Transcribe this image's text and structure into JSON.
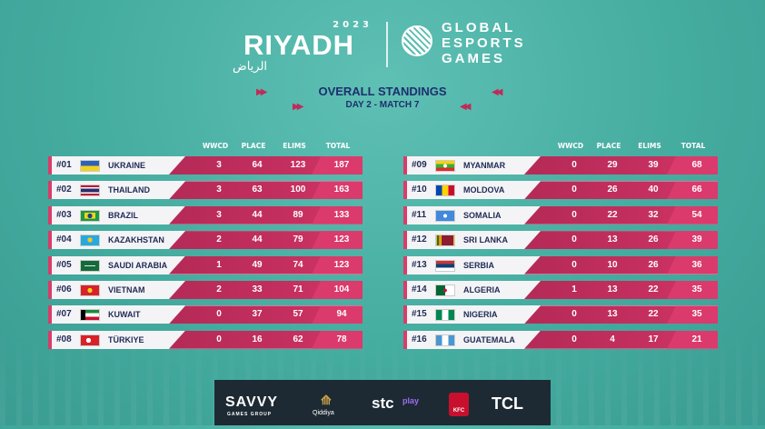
{
  "header": {
    "riyadh_year": "2023",
    "riyadh_word": "RIYADH",
    "riyadh_arabic": "الرياض",
    "ges_line1": "GLOBAL",
    "ges_line2": "ESPORTS",
    "ges_line3": "GAMES",
    "title": "OVERALL STANDINGS",
    "subtitle": "DAY 2 - MATCH 7"
  },
  "columns": {
    "wwcd": "WWCD",
    "place": "PLACE",
    "elims": "ELIMS",
    "total": "TOTAL"
  },
  "left": [
    {
      "rank": "#01",
      "country": "UKRAINE",
      "wwcd": "3",
      "place": "64",
      "elims": "123",
      "total": "187"
    },
    {
      "rank": "#02",
      "country": "THAILAND",
      "wwcd": "3",
      "place": "63",
      "elims": "100",
      "total": "163"
    },
    {
      "rank": "#03",
      "country": "BRAZIL",
      "wwcd": "3",
      "place": "44",
      "elims": "89",
      "total": "133"
    },
    {
      "rank": "#04",
      "country": "KAZAKHSTAN",
      "wwcd": "2",
      "place": "44",
      "elims": "79",
      "total": "123"
    },
    {
      "rank": "#05",
      "country": "SAUDI ARABIA",
      "wwcd": "1",
      "place": "49",
      "elims": "74",
      "total": "123"
    },
    {
      "rank": "#06",
      "country": "VIETNAM",
      "wwcd": "2",
      "place": "33",
      "elims": "71",
      "total": "104"
    },
    {
      "rank": "#07",
      "country": "KUWAIT",
      "wwcd": "0",
      "place": "37",
      "elims": "57",
      "total": "94"
    },
    {
      "rank": "#08",
      "country": "TÜRKIYE",
      "wwcd": "0",
      "place": "16",
      "elims": "62",
      "total": "78"
    }
  ],
  "right": [
    {
      "rank": "#09",
      "country": "MYANMAR",
      "wwcd": "0",
      "place": "29",
      "elims": "39",
      "total": "68"
    },
    {
      "rank": "#10",
      "country": "MOLDOVA",
      "wwcd": "0",
      "place": "26",
      "elims": "40",
      "total": "66"
    },
    {
      "rank": "#11",
      "country": "SOMALIA",
      "wwcd": "0",
      "place": "22",
      "elims": "32",
      "total": "54"
    },
    {
      "rank": "#12",
      "country": "SRI LANKA",
      "wwcd": "0",
      "place": "13",
      "elims": "26",
      "total": "39"
    },
    {
      "rank": "#13",
      "country": "SERBIA",
      "wwcd": "0",
      "place": "10",
      "elims": "26",
      "total": "36"
    },
    {
      "rank": "#14",
      "country": "ALGERIA",
      "wwcd": "1",
      "place": "13",
      "elims": "22",
      "total": "35"
    },
    {
      "rank": "#15",
      "country": "NIGERIA",
      "wwcd": "0",
      "place": "13",
      "elims": "22",
      "total": "35"
    },
    {
      "rank": "#16",
      "country": "GUATEMALA",
      "wwcd": "0",
      "place": "4",
      "elims": "17",
      "total": "21"
    }
  ],
  "sponsors": {
    "savvy": "SAVVY",
    "savvy_sub": "GAMES GROUP",
    "qiddiya": "Qiddiya",
    "stc": "stc",
    "stc_play": "play",
    "kfc": "KFC",
    "tcl": "TCL"
  },
  "colors": {
    "accent": "#c32f5e",
    "title": "#1e2f6e",
    "bg": "#45aca0"
  }
}
